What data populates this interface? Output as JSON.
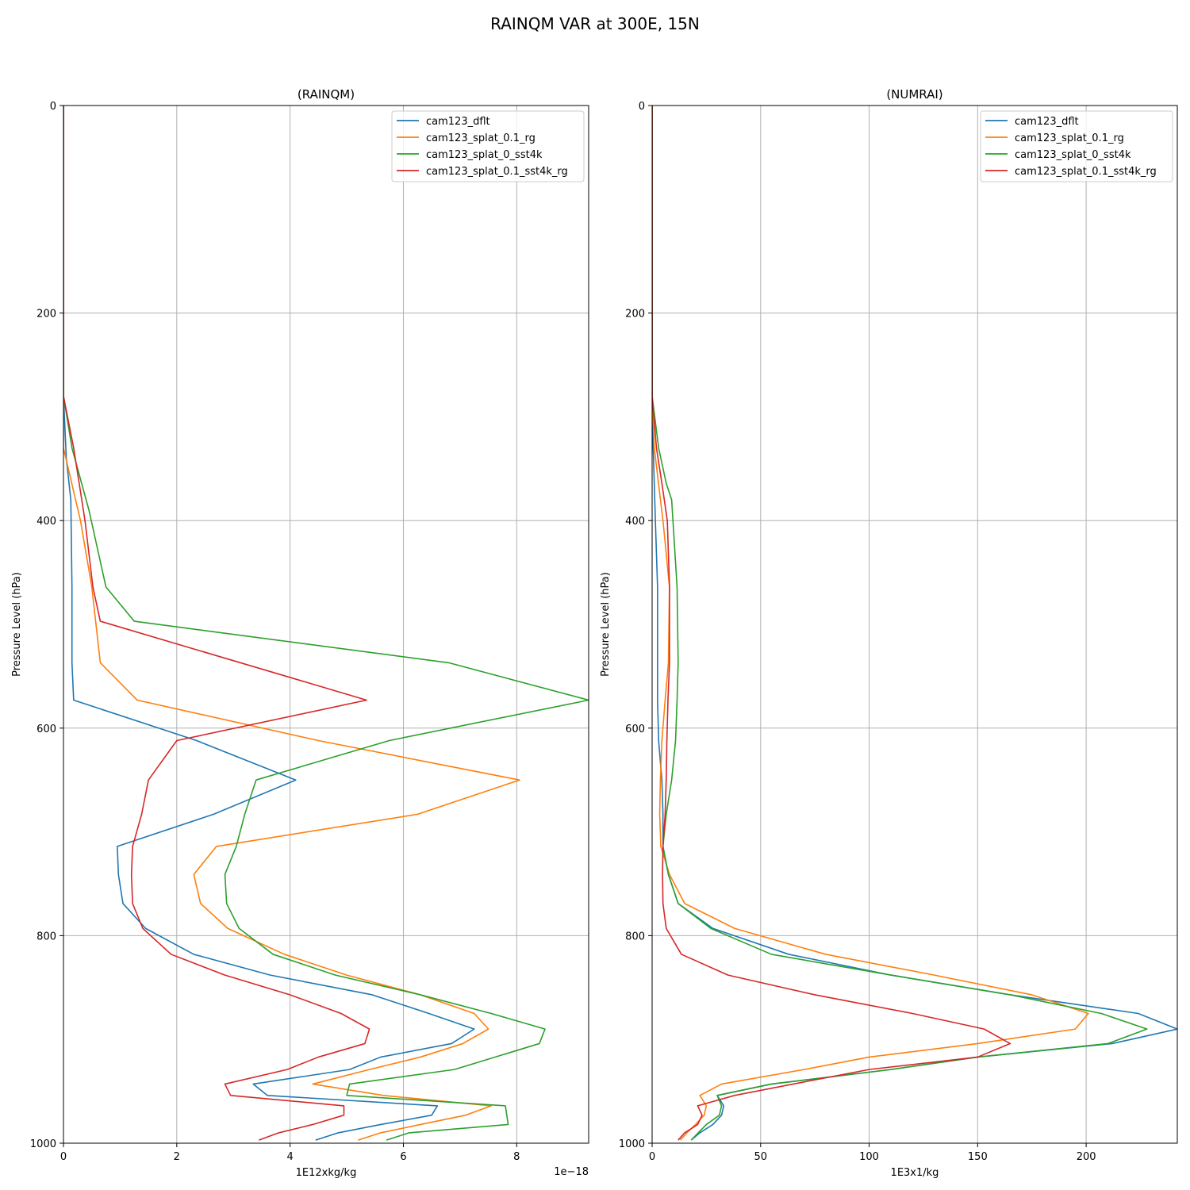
{
  "figure_title": "RAINQM VAR at 300E, 15N",
  "colors": {
    "cam123_dflt": "#1f77b4",
    "cam123_splat_0.1_rg": "#ff7f0e",
    "cam123_splat_0_sst4k": "#2ca02c",
    "cam123_splat_0.1_sst4k_rg": "#d62728"
  },
  "chart_data": [
    {
      "type": "line",
      "title": "(RAINQM)",
      "xlabel": "1E12xkg/kg",
      "ylabel": "Pressure Level (hPa)",
      "offset_text": "1e−18",
      "xlim": [
        0,
        9.27
      ],
      "ylim": [
        1000,
        0
      ],
      "xticks": [
        0,
        2,
        4,
        6,
        8
      ],
      "yticks": [
        0,
        200,
        400,
        600,
        800,
        1000
      ],
      "grid": true,
      "legend": "top-right",
      "series": [
        {
          "name": "cam123_dflt",
          "color": "#1f77b4",
          "x": [
            0.0,
            0.0,
            0.0,
            0.0,
            0.0,
            0.0,
            0.0,
            0.05,
            0.13,
            0.15,
            0.15,
            0.18,
            2.35,
            4.1,
            2.65,
            0.95,
            0.97,
            1.05,
            1.45,
            2.3,
            3.65,
            5.45,
            6.45,
            7.25,
            6.85,
            5.6,
            5.05,
            3.35,
            3.6,
            6.6,
            6.5,
            5.6,
            4.85,
            4.45
          ],
          "y": [
            0,
            50,
            100,
            150,
            200,
            250,
            280,
            340,
            380,
            464,
            537,
            573,
            612,
            650,
            683,
            714,
            741,
            769,
            793,
            818,
            838,
            857,
            875,
            890,
            904,
            917,
            929,
            943,
            954,
            964,
            973,
            982,
            990,
            997
          ]
        },
        {
          "name": "cam123_splat_0.1_rg",
          "color": "#ff7f0e",
          "x": [
            0.0,
            0.0,
            0.0,
            0.0,
            0.0,
            0.0,
            0.0,
            0.0,
            0.3,
            0.5,
            0.65,
            1.3,
            4.5,
            8.05,
            6.25,
            2.7,
            2.3,
            2.42,
            2.9,
            3.9,
            5.0,
            6.3,
            7.25,
            7.5,
            7.05,
            6.3,
            5.4,
            4.4,
            5.65,
            7.55,
            7.1,
            6.3,
            5.6,
            5.2
          ],
          "y": [
            0,
            50,
            100,
            150,
            200,
            250,
            280,
            330,
            400,
            464,
            537,
            573,
            612,
            650,
            683,
            714,
            741,
            769,
            793,
            818,
            838,
            857,
            875,
            890,
            904,
            917,
            929,
            943,
            954,
            964,
            973,
            982,
            990,
            997
          ]
        },
        {
          "name": "cam123_splat_0_sst4k",
          "color": "#2ca02c",
          "x": [
            0.0,
            0.0,
            0.0,
            0.0,
            0.0,
            0.0,
            0.0,
            0.15,
            0.45,
            0.75,
            1.25,
            6.8,
            9.27,
            5.75,
            3.4,
            3.2,
            3.05,
            2.85,
            2.88,
            3.1,
            3.7,
            4.8,
            6.3,
            7.55,
            8.5,
            8.4,
            6.9,
            5.05,
            5.0,
            7.8,
            7.85,
            6.1,
            5.7
          ],
          "y": [
            0,
            50,
            100,
            150,
            200,
            250,
            280,
            330,
            390,
            464,
            497,
            537,
            573,
            612,
            650,
            683,
            714,
            741,
            769,
            793,
            818,
            838,
            857,
            875,
            890,
            904,
            929,
            943,
            954,
            964,
            982,
            990,
            997
          ]
        },
        {
          "name": "cam123_splat_0.1_sst4k_rg",
          "color": "#d62728",
          "x": [
            0.0,
            0.0,
            0.0,
            0.0,
            0.0,
            0.0,
            0.0,
            0.18,
            0.38,
            0.52,
            0.65,
            5.35,
            2.0,
            1.5,
            1.38,
            1.22,
            1.2,
            1.22,
            1.4,
            1.9,
            2.85,
            4.0,
            4.9,
            5.4,
            5.32,
            4.5,
            3.95,
            2.85,
            2.95,
            4.95,
            4.95,
            4.4,
            3.8,
            3.45
          ],
          "y": [
            0,
            50,
            100,
            150,
            200,
            250,
            280,
            330,
            400,
            464,
            497,
            573,
            612,
            650,
            683,
            714,
            741,
            769,
            793,
            818,
            838,
            857,
            875,
            890,
            904,
            917,
            929,
            943,
            954,
            964,
            973,
            982,
            990,
            997
          ]
        }
      ]
    },
    {
      "type": "line",
      "title": "(NUMRAI)",
      "xlabel": "1E3x1/kg",
      "ylabel": "Pressure Level (hPa)",
      "xlim": [
        0,
        242
      ],
      "ylim": [
        1000,
        0
      ],
      "xticks": [
        0,
        50,
        100,
        150,
        200
      ],
      "yticks": [
        0,
        200,
        400,
        600,
        800,
        1000
      ],
      "grid": true,
      "legend": "top-right",
      "series": [
        {
          "name": "cam123_dflt",
          "color": "#1f77b4",
          "x": [
            0.0,
            0.0,
            0.0,
            0.0,
            0.0,
            0.0,
            0.0,
            0.5,
            1.5,
            2.5,
            2.5,
            2.5,
            3.0,
            4.5,
            5.0,
            5.0,
            7.5,
            12.0,
            28.0,
            63.0,
            110.0,
            165.0,
            224.0,
            242.0,
            212.0,
            150.0,
            110.0,
            55.0,
            30.0,
            33.0,
            32.0,
            28.0,
            22.0,
            18.0
          ],
          "y": [
            0,
            50,
            100,
            150,
            200,
            250,
            280,
            330,
            400,
            464,
            537,
            573,
            612,
            650,
            683,
            714,
            741,
            769,
            793,
            818,
            838,
            857,
            875,
            890,
            904,
            917,
            929,
            943,
            954,
            964,
            973,
            982,
            990,
            997
          ]
        },
        {
          "name": "cam123_splat_0.1_rg",
          "color": "#ff7f0e",
          "x": [
            0.0,
            0.0,
            0.0,
            0.0,
            0.0,
            0.0,
            0.0,
            1.0,
            5.0,
            8.0,
            7.5,
            6.0,
            4.5,
            3.8,
            3.5,
            4.0,
            8.0,
            15.0,
            38.0,
            80.0,
            130.0,
            175.0,
            201.0,
            195.0,
            150.0,
            100.0,
            70.0,
            32.0,
            22.0,
            25.0,
            24.0,
            20.0,
            16.0,
            13.0
          ],
          "y": [
            0,
            50,
            100,
            150,
            200,
            250,
            280,
            330,
            400,
            464,
            537,
            573,
            612,
            650,
            683,
            714,
            741,
            769,
            793,
            818,
            838,
            857,
            875,
            890,
            904,
            917,
            929,
            943,
            954,
            964,
            973,
            982,
            990,
            997
          ]
        },
        {
          "name": "cam123_splat_0_sst4k",
          "color": "#2ca02c",
          "x": [
            0.0,
            0.0,
            0.0,
            0.0,
            0.0,
            0.0,
            0.0,
            3.0,
            6.5,
            9.0,
            11.5,
            12.0,
            11.5,
            10.8,
            9.0,
            6.5,
            5.0,
            7.5,
            12.0,
            27.0,
            55.0,
            110.0,
            165.0,
            207.0,
            228.0,
            210.0,
            150.0,
            110.0,
            55.0,
            30.0,
            32.0,
            31.0,
            25.0,
            18.0
          ],
          "y": [
            0,
            50,
            100,
            150,
            200,
            250,
            280,
            330,
            364,
            380,
            464,
            537,
            573,
            612,
            650,
            683,
            714,
            741,
            769,
            793,
            818,
            838,
            857,
            875,
            890,
            904,
            917,
            929,
            943,
            954,
            964,
            973,
            982,
            997
          ]
        },
        {
          "name": "cam123_splat_0.1_sst4k_rg",
          "color": "#d62728",
          "x": [
            0.0,
            0.0,
            0.0,
            0.0,
            0.0,
            0.0,
            0.0,
            2.0,
            4.5,
            7.0,
            8.0,
            8.0,
            7.3,
            6.8,
            6.5,
            6.0,
            5.0,
            4.8,
            5.0,
            6.5,
            13.5,
            35.0,
            75.0,
            120.0,
            153.0,
            165.0,
            150.0,
            100.0,
            65.0,
            38.0,
            21.0,
            23.0,
            21.0,
            15.0,
            12.0
          ],
          "y": [
            0,
            50,
            100,
            150,
            200,
            250,
            280,
            330,
            364,
            400,
            464,
            537,
            573,
            612,
            650,
            683,
            714,
            741,
            769,
            793,
            818,
            838,
            857,
            875,
            890,
            904,
            917,
            929,
            943,
            954,
            964,
            973,
            982,
            990,
            997
          ]
        }
      ]
    }
  ]
}
